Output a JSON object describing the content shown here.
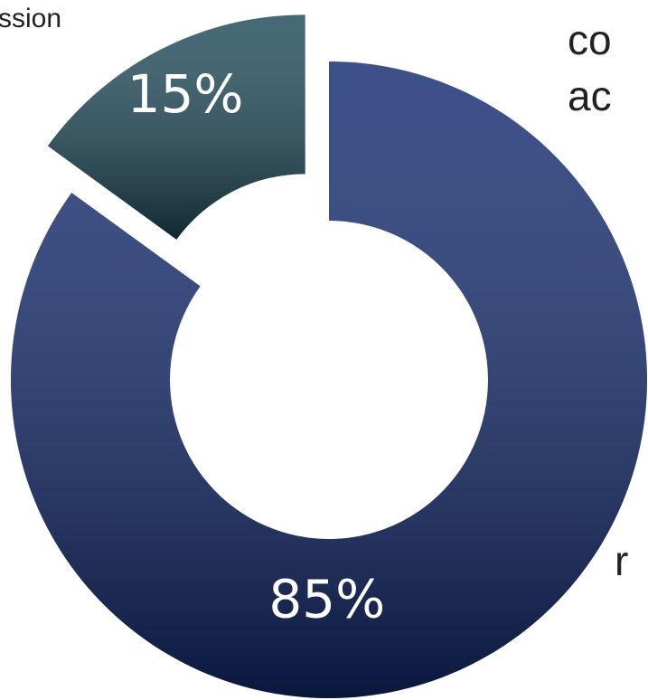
{
  "chart_data": {
    "type": "donut",
    "values": [
      85,
      15
    ],
    "value_labels": [
      "85%",
      "15%"
    ],
    "colors": [
      "#12296e",
      "#1d4858"
    ],
    "explode": [
      false,
      true
    ],
    "annotations": [
      "ssion",
      "co",
      "ac",
      "r"
    ]
  }
}
